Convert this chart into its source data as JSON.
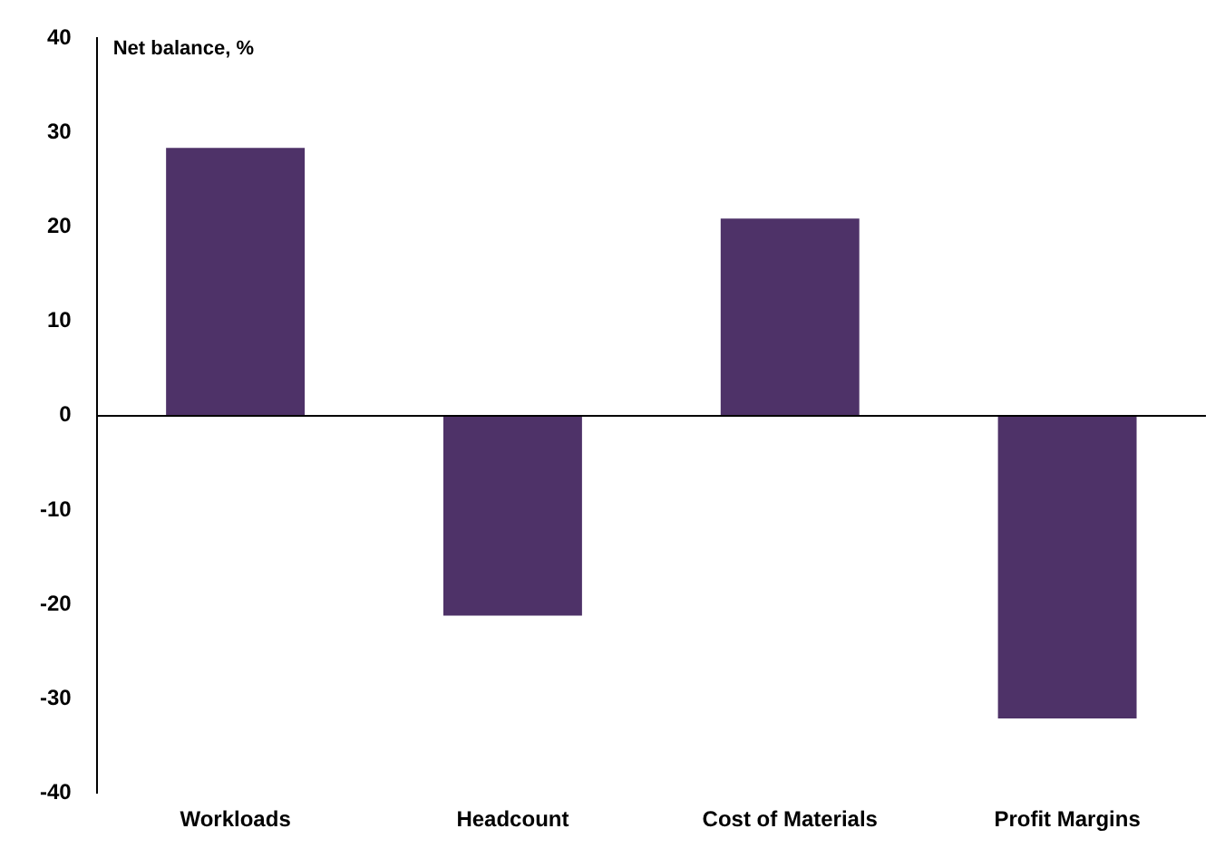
{
  "chart_data": {
    "type": "bar",
    "ylabel": "Net balance, %",
    "categories": [
      "Workloads",
      "Headcount",
      "Cost of Materials",
      "Profit Margins"
    ],
    "values": [
      28.4,
      -21.2,
      20.9,
      -32.1
    ],
    "color": "#4e3268",
    "ylim": [
      -40,
      40
    ],
    "yticks": [
      -40,
      -30,
      -20,
      -10,
      0,
      10,
      20,
      30,
      40
    ]
  }
}
